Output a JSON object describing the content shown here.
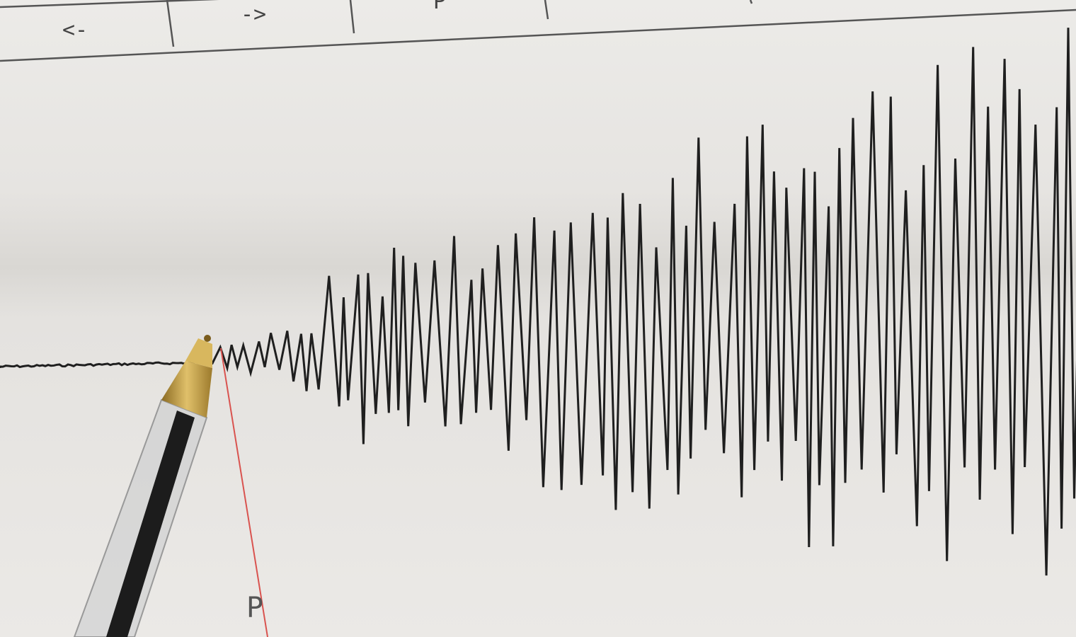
{
  "chart_header": {
    "cells": [
      "<-",
      "->",
      "P"
    ]
  },
  "phase_marker": {
    "label": "P",
    "color": "#d9534f"
  },
  "colors": {
    "paper": "#e9e7e4",
    "ink": "#1a1a1a",
    "pen_tip": "#c9a445"
  },
  "objects": [
    "seismogram-trace",
    "ballpoint-pen",
    "p-wave-marker"
  ]
}
